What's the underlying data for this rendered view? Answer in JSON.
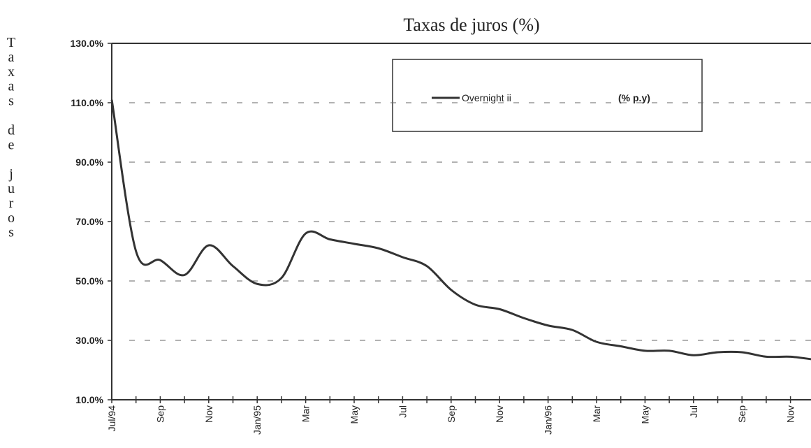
{
  "chart_data": {
    "type": "line",
    "title": "Taxas de juros (%)",
    "y_label": "Taxas de juros",
    "categories": [
      "Jul/94",
      null,
      "Sep",
      null,
      "Nov",
      null,
      "Jan/95",
      null,
      "Mar",
      null,
      "May",
      null,
      "Jul",
      null,
      "Sep",
      null,
      "Nov",
      null,
      "Jan/96",
      null,
      "Mar",
      null,
      "May",
      null,
      "Jul",
      null,
      "Sep",
      null,
      "Nov",
      null
    ],
    "series": [
      {
        "name": "Overnight ii",
        "color": "#333333",
        "values": [
          111,
          60,
          57,
          52,
          62,
          55,
          49,
          51,
          66,
          64,
          62.5,
          61,
          58,
          55,
          47,
          42,
          40.5,
          37.5,
          35,
          33.5,
          29.5,
          28,
          26.5,
          26.5,
          25,
          26,
          26,
          24.5,
          24.5,
          23.5
        ]
      }
    ],
    "legend_unit": "(% p.y)",
    "ylim": [
      10,
      130
    ],
    "yticks": [
      {
        "value": 10,
        "label": "10.0%"
      },
      {
        "value": 30,
        "label": "30.0%"
      },
      {
        "value": 50,
        "label": "50.0%"
      },
      {
        "value": 70,
        "label": "70.0%"
      },
      {
        "value": 90,
        "label": "90.0%"
      },
      {
        "value": 110,
        "label": "110.0%"
      },
      {
        "value": 130,
        "label": "130.0%"
      }
    ],
    "grid": true
  }
}
